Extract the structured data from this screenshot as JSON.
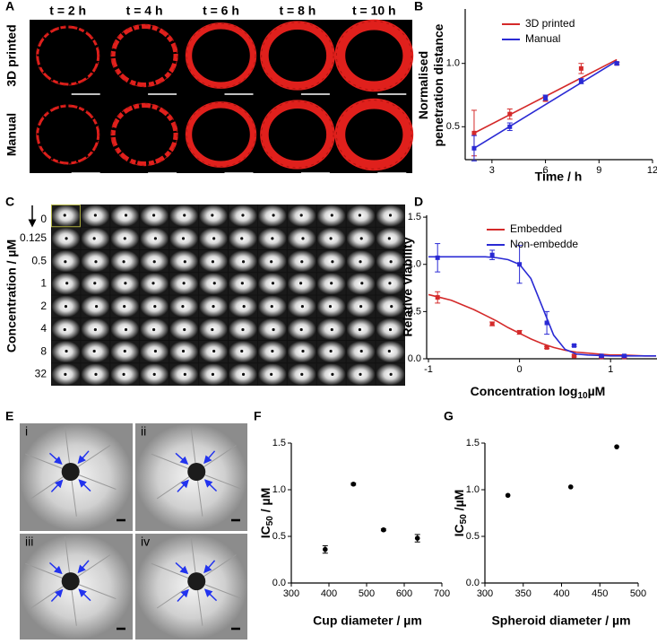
{
  "panel_letters": [
    "A",
    "B",
    "C",
    "D",
    "E",
    "F",
    "G"
  ],
  "panel_a": {
    "timepoints": [
      "t = 2 h",
      "t = 4 h",
      "t = 6 h",
      "t = 8 h",
      "t = 10 h"
    ],
    "rows": [
      "3D printed",
      "Manual"
    ]
  },
  "panel_c": {
    "ylabel": "Concentration / µM",
    "concentrations": [
      "0",
      "0.125",
      "0.5",
      "1",
      "2",
      "4",
      "8",
      "32"
    ]
  },
  "panel_e": {
    "labels": [
      "i",
      "ii",
      "iii",
      "iv"
    ]
  },
  "chart_data": [
    {
      "type": "line",
      "ylabel": [
        "Normalised",
        "penetration distance"
      ],
      "xlabel": "Time / h",
      "x": [
        2,
        4,
        6,
        8,
        10
      ],
      "fit_x": [
        2,
        10
      ],
      "series": [
        {
          "name": "3D printed",
          "color": "#d42a2a",
          "values": [
            0.45,
            0.6,
            0.72,
            0.96,
            1.0
          ],
          "errors": [
            0.18,
            0.04,
            0.02,
            0.04,
            0.01
          ],
          "fit": [
            0.45,
            1.03
          ]
        },
        {
          "name": "Manual",
          "color": "#2a2ad4",
          "values": [
            0.33,
            0.5,
            0.73,
            0.86,
            1.0
          ],
          "errors": [
            0.1,
            0.03,
            0.02,
            0.02,
            0.01
          ],
          "fit": [
            0.33,
            1.02
          ]
        }
      ],
      "xlim": [
        1.5,
        12
      ],
      "xticks": [
        3,
        6,
        9,
        12
      ],
      "ylim": [
        0.24,
        1.43
      ],
      "yticks": [
        {
          "value": 0.5,
          "label": "0.5"
        },
        {
          "value": 1,
          "label": "1.0"
        }
      ],
      "legend": "upper left"
    },
    {
      "type": "line",
      "ylabel": "Relative Viability",
      "xlabel": [
        "Concentration log",
        "10",
        "µM"
      ],
      "x": [
        -0.9,
        -0.3,
        0,
        0.3,
        0.6,
        0.9,
        1.15
      ],
      "fit_x": [
        -1,
        -0.875,
        -0.75,
        -0.625,
        -0.5,
        -0.375,
        -0.25,
        -0.125,
        0,
        0.125,
        0.25,
        0.375,
        0.5,
        0.625,
        0.75,
        0.875,
        1,
        1.125,
        1.25,
        1.375,
        1.5
      ],
      "series": [
        {
          "name": "Embedded",
          "color": "#d42a2a",
          "values": [
            0.65,
            0.37,
            0.28,
            0.12,
            0.03,
            0.02,
            0.02
          ],
          "errors": [
            0.06,
            0.02,
            0.02,
            0.01,
            0.01,
            0.01,
            0.01
          ],
          "fit": [
            0.68,
            0.65,
            0.62,
            0.57,
            0.52,
            0.46,
            0.4,
            0.33,
            0.27,
            0.21,
            0.16,
            0.12,
            0.09,
            0.07,
            0.06,
            0.05,
            0.04,
            0.04,
            0.035,
            0.03,
            0.03
          ]
        },
        {
          "name": "Non-embedde",
          "color": "#2a2ad4",
          "values": [
            1.07,
            1.1,
            1.0,
            0.38,
            0.14,
            0.03,
            0.03
          ],
          "errors": [
            0.15,
            0.05,
            0.2,
            0.12,
            0.01,
            0.01,
            0.01
          ],
          "fit": [
            1.08,
            1.08,
            1.08,
            1.08,
            1.08,
            1.08,
            1.07,
            1.05,
            1.0,
            0.85,
            0.55,
            0.25,
            0.1,
            0.05,
            0.04,
            0.035,
            0.03,
            0.03,
            0.03,
            0.03,
            0.03
          ]
        }
      ],
      "xlim": [
        -1.02,
        1.51
      ],
      "xticks": [
        -1,
        0,
        1
      ],
      "ylim": [
        0,
        1.52
      ],
      "yticks": [
        {
          "value": 0,
          "label": "0.0"
        },
        {
          "value": 0.5,
          "label": "0.5"
        },
        {
          "value": 1,
          "label": "1.0"
        },
        {
          "value": 1.5,
          "label": "1.5"
        }
      ],
      "legend": "upper right"
    },
    {
      "type": "scatter",
      "ylabel": [
        "IC",
        "50",
        " / µM"
      ],
      "xlabel": "Cup diameter / µm",
      "x": [
        390,
        465,
        545,
        635
      ],
      "series": [
        {
          "color": "#000000",
          "values": [
            0.36,
            1.06,
            0.57,
            0.48
          ],
          "errors": [
            0.04,
            0.01,
            0.01,
            0.04
          ]
        }
      ],
      "xlim": [
        300,
        700
      ],
      "xticks": [
        300,
        400,
        500,
        600,
        700
      ],
      "ylim": [
        0,
        1.5
      ],
      "yticks": [
        {
          "value": 0,
          "label": "0.0"
        },
        {
          "value": 0.5,
          "label": "0.5"
        },
        {
          "value": 1,
          "label": "1.0"
        },
        {
          "value": 1.5,
          "label": "1.5"
        }
      ]
    },
    {
      "type": "scatter",
      "ylabel": [
        "IC",
        "50",
        " /µM"
      ],
      "xlabel": "Spheroid diameter / µm",
      "x": [
        330,
        412,
        472
      ],
      "series": [
        {
          "color": "#000000",
          "values": [
            0.94,
            1.03,
            1.46
          ]
        }
      ],
      "xlim": [
        300,
        500
      ],
      "xticks": [
        300,
        350,
        400,
        450,
        500
      ],
      "ylim": [
        0,
        1.5
      ],
      "yticks": [
        {
          "value": 0,
          "label": "0.0"
        },
        {
          "value": 0.5,
          "label": "0.5"
        },
        {
          "value": 1,
          "label": "1.0"
        },
        {
          "value": 1.5,
          "label": "1.5"
        }
      ]
    }
  ]
}
